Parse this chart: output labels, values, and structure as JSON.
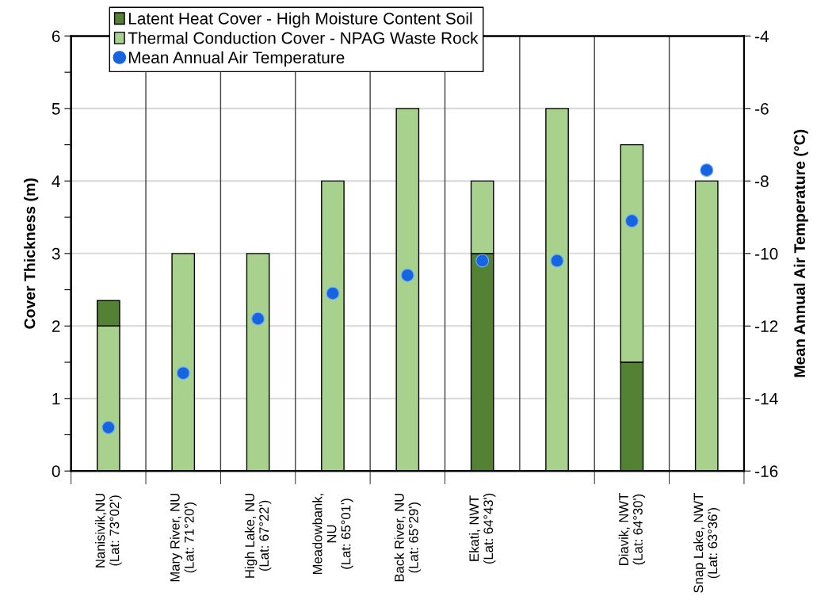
{
  "chart_data": {
    "type": "bar",
    "stacked": true,
    "categories": [
      "Nanisivik,NU\n(Lat: 73°02')",
      "Mary River, NU\n(Lat: 71°20')",
      "High Lake, NU\n(Lat: 67°22')",
      "Meadowbank,\nNU\n(Lat: 65°01')",
      "Back River, NU\n(Lat: 65°29')",
      "Ekati, NWT\n(Lat: 64°43')",
      null,
      "Diavik, NWT\n(Lat: 64°30')",
      "Snap Lake, NWT\n(Lat: 63°36')"
    ],
    "series": [
      {
        "name": "Latent Heat Cover - High Moisture Content Soil",
        "color": "#548235",
        "values": [
          null,
          null,
          null,
          null,
          null,
          3,
          null,
          1.5,
          null
        ]
      },
      {
        "name": "Thermal Conduction Cover - NPAG Waste Rock",
        "color": "#a9d18e",
        "values": [
          2,
          3,
          3,
          4,
          5,
          1,
          5,
          3,
          4
        ]
      },
      {
        "color": "#548235",
        "values": [
          0.35,
          null,
          null,
          null,
          null,
          null,
          null,
          null,
          null
        ]
      },
      {
        "name": "Mean Annual Air Temperature",
        "type": "scatter",
        "axis": "y2",
        "color": "#1664e0",
        "values": [
          -14.8,
          -13.3,
          -11.8,
          -11.1,
          -10.6,
          -10.2,
          -10.2,
          -9.1,
          -7.7
        ]
      }
    ],
    "ylabel": "Cover Thickness (m)",
    "y2label": "Mean Annual Air Temperature (°C)",
    "ylim": [
      0,
      6
    ],
    "yticks": [
      0,
      {
        "value": 0.5,
        "label": null
      },
      1,
      {
        "value": 1.5,
        "label": null
      },
      2,
      {
        "value": 2.5,
        "label": null
      },
      3,
      {
        "value": 3.5,
        "label": null
      },
      4,
      {
        "value": 4.5,
        "label": null
      },
      5,
      {
        "value": 5.5,
        "label": null
      },
      6
    ],
    "y2lim": [
      -16,
      -4
    ],
    "y2ticks": [
      -16,
      -14,
      -12,
      -10,
      -8,
      -6,
      -4
    ],
    "grid": true,
    "legend": "top left",
    "marker": "circle"
  }
}
